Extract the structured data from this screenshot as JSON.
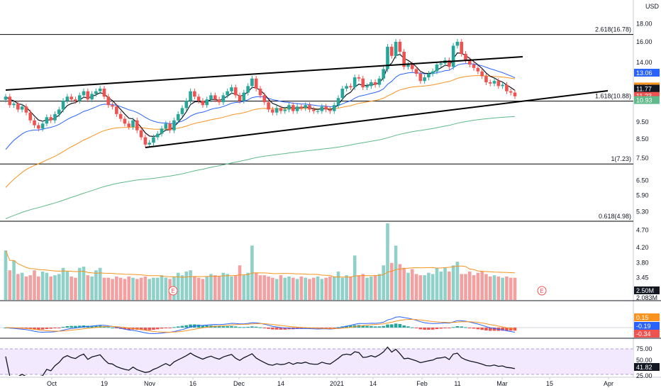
{
  "currency_label": "USD",
  "colors": {
    "up": "#26a69a",
    "down": "#ef5350",
    "up_vol": "#8fd1c9",
    "down_vol": "#f3a0a0",
    "ema_short": "#131722",
    "ema_mid": "#2962ff",
    "ema_long": "#f7931e",
    "ema_xlong": "#5fb98a",
    "trendline": "#000000",
    "rsi_bg": "#f3e9ff",
    "fib": "#000000"
  },
  "chart_data": {
    "type": "candlestick",
    "x_tick_labels": [
      "Oct",
      "19",
      "Nov",
      "16",
      "Dec",
      "14",
      "2021",
      "14",
      "Feb",
      "11",
      "Mar",
      "15",
      "Apr"
    ],
    "y_tick_labels": [
      "18.00",
      "16.00",
      "14.00",
      "12.00",
      "11.00",
      "9.50",
      "8.50",
      "7.50",
      "6.50",
      "5.90",
      "5.30",
      "4.70",
      "4.20",
      "3.80",
      "3.45"
    ],
    "price_range": [
      2.7,
      20
    ],
    "log_scale": true,
    "fib_levels": [
      {
        "label": "2.618(16.78)",
        "price": 16.78
      },
      {
        "label": "1.618(10.88)",
        "price": 10.88
      },
      {
        "label": "1(7.23)",
        "price": 7.23
      },
      {
        "label": "0.618(4.98)",
        "price": 4.98
      }
    ],
    "price_tags": [
      {
        "label": "13.06",
        "price": 13.06,
        "color": "#2962ff"
      },
      {
        "label": "11.94",
        "price": 11.94,
        "color": "#f7931e"
      },
      {
        "label": "11.77",
        "price": 11.77,
        "color": "#131722"
      },
      {
        "label": "11.23",
        "price": 11.23,
        "color": "#ef5350"
      },
      {
        "label": "10.93",
        "price": 10.93,
        "color": "#5fb98a"
      }
    ],
    "closes": [
      11.2,
      10.6,
      10.7,
      10.3,
      10.5,
      10.1,
      9.6,
      9.3,
      9.1,
      9.4,
      9.8,
      9.6,
      10.0,
      10.3,
      10.9,
      11.2,
      11.0,
      10.9,
      11.3,
      11.6,
      11.0,
      11.4,
      11.6,
      11.8,
      11.2,
      10.6,
      10.5,
      10.0,
      9.7,
      9.4,
      9.2,
      9.6,
      9.0,
      8.6,
      8.2,
      8.3,
      8.6,
      8.8,
      9.1,
      9.4,
      9.0,
      9.6,
      10.0,
      10.4,
      10.9,
      11.6,
      11.2,
      10.9,
      10.6,
      11.0,
      11.3,
      11.0,
      10.8,
      11.3,
      11.6,
      11.9,
      11.3,
      10.9,
      11.5,
      12.0,
      12.6,
      11.8,
      11.3,
      10.8,
      10.3,
      10.1,
      10.4,
      10.2,
      10.3,
      10.6,
      10.2,
      10.5,
      10.4,
      10.6,
      10.3,
      10.2,
      10.2,
      10.5,
      10.3,
      10.2,
      10.6,
      11.1,
      11.8,
      12.0,
      11.9,
      12.7,
      12.6,
      11.9,
      12.0,
      12.3,
      12.1,
      12.6,
      13.4,
      15.5,
      14.6,
      16.0,
      15.0,
      13.6,
      13.8,
      13.4,
      13.0,
      12.4,
      12.7,
      13.0,
      13.2,
      13.8,
      13.9,
      14.2,
      13.6,
      15.6,
      16.0,
      14.8,
      14.2,
      13.8,
      13.5,
      13.2,
      12.8,
      12.3,
      12.2,
      12.4,
      12.0,
      12.1,
      11.6,
      11.5,
      11.23
    ],
    "volumes": [
      4.0,
      2.4,
      3.2,
      2.1,
      2.2,
      1.9,
      2.0,
      2.4,
      1.9,
      2.3,
      2.2,
      1.9,
      2.0,
      2.1,
      2.6,
      2.3,
      1.9,
      1.8,
      2.6,
      2.7,
      2.0,
      1.9,
      2.4,
      2.6,
      1.8,
      1.8,
      1.7,
      1.9,
      1.8,
      1.7,
      1.9,
      1.8,
      1.7,
      1.8,
      1.9,
      1.7,
      1.8,
      1.8,
      2.0,
      1.8,
      1.7,
      1.9,
      2.2,
      2.0,
      2.3,
      2.4,
      1.9,
      1.8,
      1.7,
      1.9,
      2.1,
      2.0,
      1.9,
      2.2,
      2.1,
      1.9,
      2.0,
      2.8,
      2.0,
      2.2,
      4.4,
      2.2,
      2.0,
      2.0,
      1.9,
      1.8,
      1.7,
      2.0,
      1.8,
      1.9,
      1.8,
      1.7,
      1.9,
      1.8,
      1.7,
      1.8,
      1.9,
      1.7,
      1.8,
      1.9,
      1.9,
      2.3,
      1.8,
      2.0,
      1.9,
      3.6,
      2.0,
      2.1,
      1.8,
      1.9,
      2.0,
      2.1,
      2.8,
      6.2,
      3.0,
      4.4,
      2.9,
      2.6,
      2.2,
      2.5,
      2.1,
      2.0,
      2.0,
      2.2,
      2.1,
      2.6,
      2.3,
      2.6,
      2.3,
      2.8,
      3.1,
      2.1,
      2.1,
      2.3,
      2.0,
      2.2,
      2.3,
      2.1,
      1.9,
      2.0,
      1.9,
      1.8,
      1.9,
      1.8,
      1.8
    ],
    "volume_labels": [
      "2.50M",
      "2.083M"
    ],
    "macd_labels": [
      "0.15",
      "-0.19",
      "-0.34"
    ],
    "rsi_labels": [
      "75.00",
      "41.82",
      "50.00",
      "25.00"
    ],
    "earnings_marker": "E"
  }
}
